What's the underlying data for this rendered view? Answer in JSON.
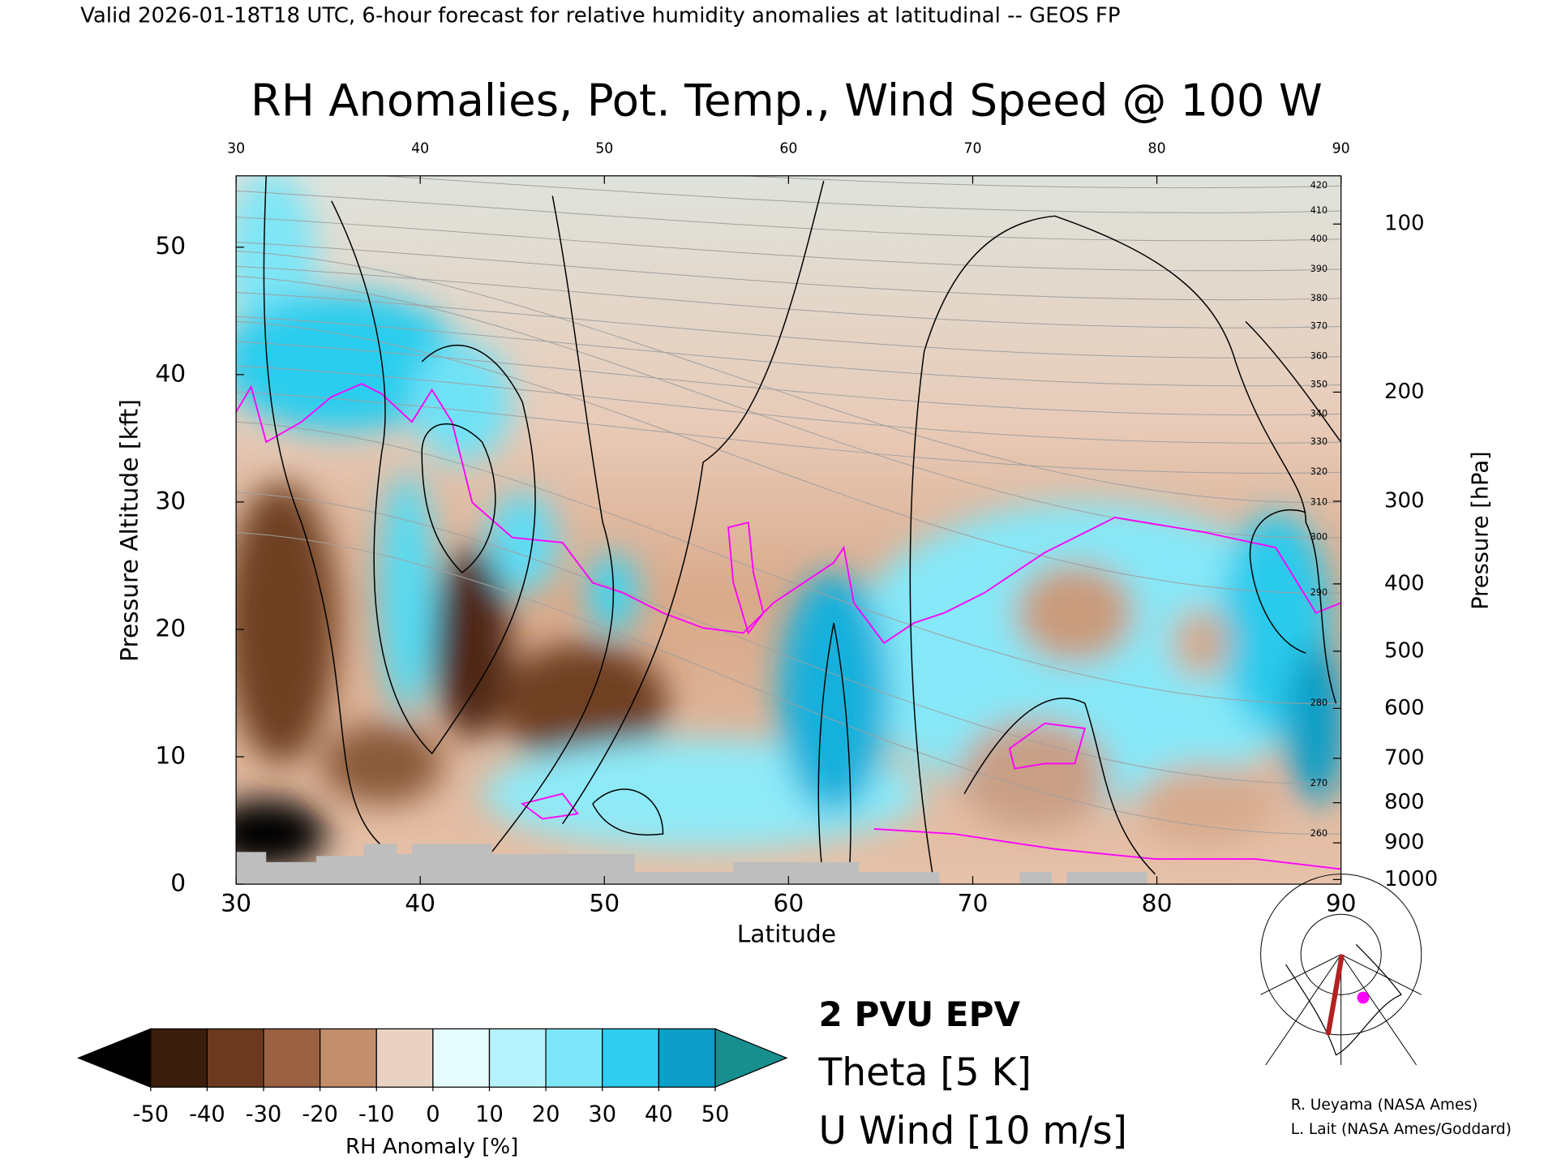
{
  "header": "Valid 2026-01-18T18 UTC, 6-hour forecast for relative humidity anomalies at latitudinal -- GEOS FP",
  "chart_data": {
    "type": "cross-section",
    "title": "RH Anomalies, Pot. Temp., Wind Speed @ 100 W",
    "x_label": "Latitude",
    "y_label": "Pressure Altitude [kft]",
    "y2_label": "Pressure [hPa]",
    "xlim": [
      30,
      90
    ],
    "xticks": [
      30,
      40,
      50,
      60,
      70,
      80,
      90
    ],
    "ylim": [
      0,
      55.6
    ],
    "yticks": [
      0,
      10,
      20,
      30,
      40,
      50
    ],
    "y2lim": [
      1013.25,
      80.5
    ],
    "y2ticks": [
      100,
      200,
      300,
      400,
      500,
      600,
      700,
      800,
      900,
      1000
    ],
    "y2scale": "pressure-altitude",
    "theta_levels": [
      260,
      270,
      280,
      290,
      300,
      310,
      320,
      330,
      340,
      350,
      360,
      370,
      380,
      390,
      400,
      410,
      420
    ],
    "theta_color": "#a0a0a0",
    "colorbar": {
      "label": "RH Anomaly [%]",
      "ticks": [
        -50,
        -40,
        -30,
        -20,
        -10,
        0,
        10,
        20,
        30,
        40,
        50
      ],
      "colors": [
        "#3b1d0b",
        "#6b3a1e",
        "#9a6242",
        "#c28e6c",
        "#ead2c3",
        "#e6fcff",
        "#b5f2fb",
        "#7de6f8",
        "#2fcdee",
        "#0c9ec6"
      ],
      "under_color": "#000000",
      "over_color": "#178f8f"
    },
    "legend": [
      {
        "name": "2 PVU EPV",
        "color": "#ff00ff"
      },
      {
        "name": "Theta [5 K]",
        "color": "#b4b4b4"
      },
      {
        "name": "U Wind [10 m/s]",
        "color": "#000000"
      }
    ]
  },
  "credits": [
    "R. Ueyama (NASA Ames)",
    "L. Lait (NASA Ames/Goddard)"
  ]
}
